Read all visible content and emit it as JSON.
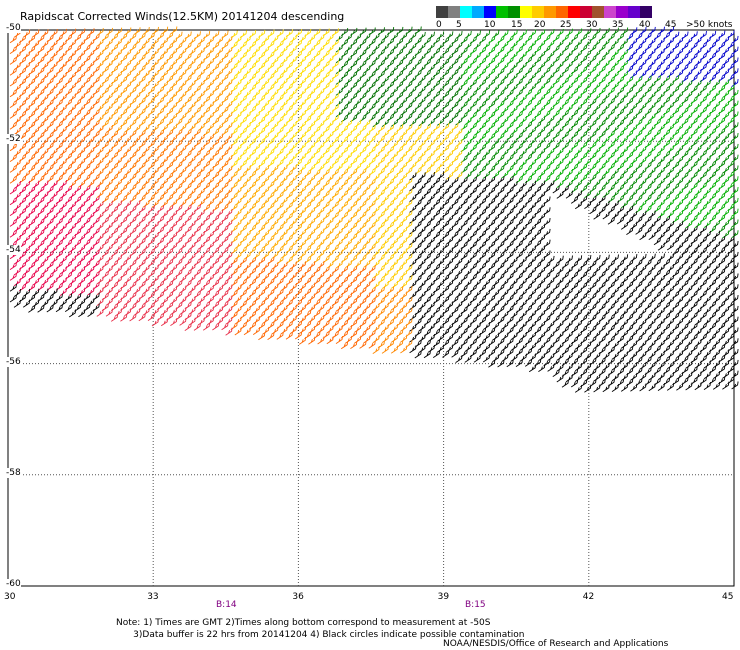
{
  "title": "Rapidscat Corrected Winds(12.5KM) 20141204 descending",
  "legend": {
    "labels": [
      "0",
      "5",
      "10",
      "15",
      "20",
      "25",
      "30",
      "35",
      "40",
      "45",
      ">50 knots"
    ],
    "colors": [
      "#404040",
      "#808080",
      "#00ffff",
      "#00aaff",
      "#0000ff",
      "#00c000",
      "#009000",
      "#ffff00",
      "#ffcc00",
      "#ff9900",
      "#ff6600",
      "#ff0000",
      "#cc0033",
      "#a0522d",
      "#cc44cc",
      "#9900cc",
      "#6600cc",
      "#330066"
    ]
  },
  "axes": {
    "x_ticks": [
      "30",
      "33",
      "36",
      "39",
      "42",
      "45"
    ],
    "y_ticks": [
      "-50",
      "-52",
      "-54",
      "-56",
      "-58",
      "-60"
    ]
  },
  "time_marks": [
    "B:14",
    "B:15"
  ],
  "notes": "Note: 1) Times are GMT 2)Times along bottom correspond to measurement at -50S\n      3)Data buffer is 22 hrs from 20141204 4) Black circles indicate possible contamination",
  "credit": "NOAA/NESDIS/Office of Research and Applications"
}
